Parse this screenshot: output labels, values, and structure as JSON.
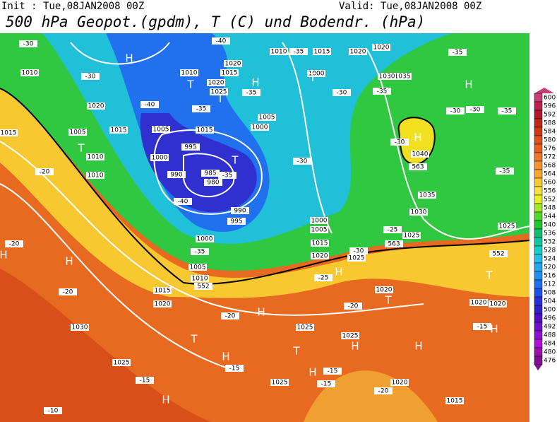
{
  "header": {
    "init": "Init : Tue,08JAN2008 00Z",
    "valid": "Valid: Tue,08JAN2008 00Z",
    "title": "500 hPa Geopot.(gpdm), T (C) und Bodendr. (hPa)"
  },
  "colorbar": {
    "levels": [
      600,
      596,
      592,
      588,
      584,
      580,
      576,
      572,
      568,
      564,
      560,
      556,
      552,
      548,
      544,
      540,
      536,
      532,
      528,
      524,
      520,
      516,
      512,
      508,
      504,
      500,
      496,
      492,
      488,
      484,
      480,
      476
    ],
    "colors": [
      "#c83c78",
      "#c02050",
      "#b01830",
      "#c02818",
      "#d03818",
      "#e05020",
      "#e86020",
      "#f07828",
      "#f89030",
      "#f8a830",
      "#f8c830",
      "#f8e040",
      "#e8f020",
      "#a0e828",
      "#50d828",
      "#20c830",
      "#10c070",
      "#10c8a0",
      "#10d0c8",
      "#20c0e8",
      "#20a8f0",
      "#2090f0",
      "#2070f0",
      "#2050e8",
      "#2830d8",
      "#3020c8",
      "#5010c0",
      "#7010c8",
      "#9010d0",
      "#b010d8",
      "#a010b0",
      "#801090"
    ]
  },
  "map_labels": [
    "-30",
    "1010",
    "-30",
    "1020",
    "-40",
    "1015",
    "1005",
    "T",
    "1015",
    "1010",
    "1010",
    "-20",
    "1005",
    "1000",
    "995",
    "990",
    "985",
    "980",
    "-35",
    "-40",
    "990",
    "995",
    "1000",
    "-35",
    "1005",
    "1010",
    "552",
    "1015",
    "1020",
    "1030",
    "1025",
    "-15",
    "-10",
    "H",
    "H",
    "H",
    "-20",
    "-20",
    "T",
    "H",
    "-15",
    "-20",
    "H",
    "1025",
    "T",
    "H",
    "-15",
    "1025",
    "-15",
    "1025",
    "H",
    "H",
    "1020",
    "-20",
    "1015",
    "H",
    "-15",
    "1020",
    "1020",
    "T",
    "552",
    "1025",
    "-25",
    "563",
    "1030",
    "1035",
    "1040",
    "H",
    "-30",
    "563",
    "1035",
    "1030",
    "H",
    "-30",
    "-30",
    "-35",
    "-35",
    "1025",
    "1020",
    "-35",
    "1020",
    "1015",
    "1010",
    "-35",
    "1000",
    "T",
    "-30",
    "-35",
    "1020",
    "1015",
    "1020",
    "1025",
    "T",
    "T",
    "1010",
    "-35",
    "H",
    "1005",
    "1000",
    "-35",
    "1015",
    "T",
    "-30",
    "1000",
    "1005",
    "1015",
    "1020",
    "-30",
    "1025",
    "-25",
    "H",
    "1020",
    "T",
    "-20",
    "H",
    "-40"
  ]
}
